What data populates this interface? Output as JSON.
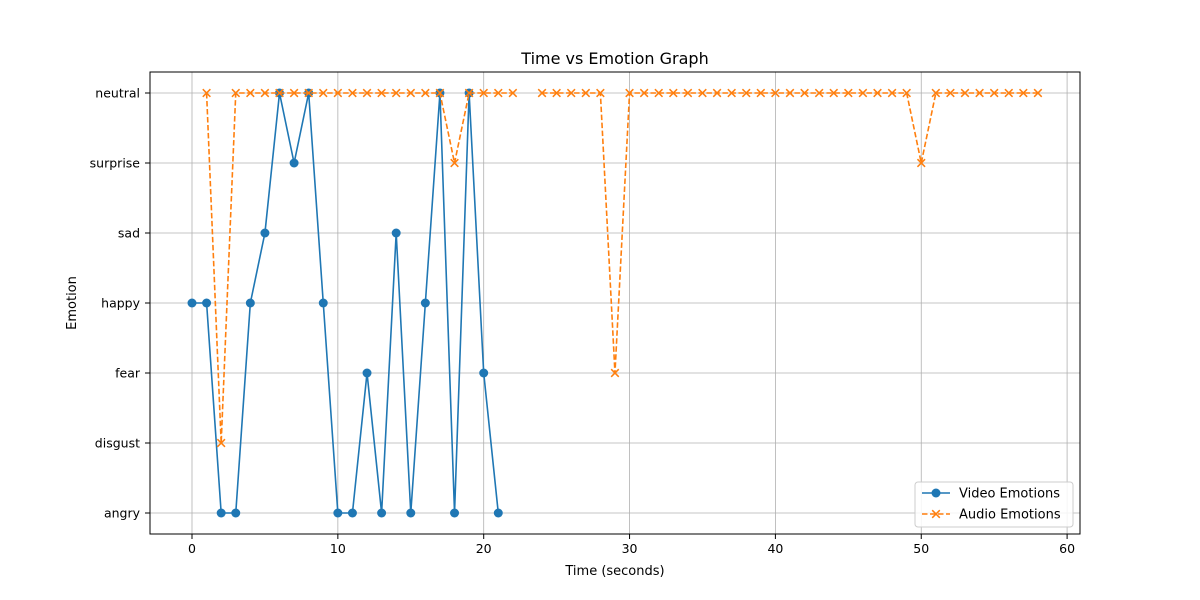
{
  "chart_data": {
    "type": "line",
    "title": "Time vs Emotion Graph",
    "xlabel": "Time (seconds)",
    "ylabel": "Emotion",
    "xlim": [
      -3,
      61
    ],
    "xticks": [
      0,
      10,
      20,
      30,
      40,
      50,
      60
    ],
    "categories_y": [
      "angry",
      "disgust",
      "fear",
      "happy",
      "sad",
      "surprise",
      "neutral"
    ],
    "grid": true,
    "legend_position": "bottom-right",
    "series": [
      {
        "name": "Video Emotions",
        "color": "#1f77b4",
        "line_style": "solid",
        "marker": "circle",
        "x": [
          0,
          1,
          2,
          3,
          4,
          5,
          6,
          7,
          8,
          9,
          10,
          11,
          12,
          13,
          14,
          15,
          16,
          17,
          18,
          19,
          20,
          21
        ],
        "y": [
          "happy",
          "happy",
          "angry",
          "angry",
          "happy",
          "sad",
          "neutral",
          "surprise",
          "neutral",
          "happy",
          "angry",
          "angry",
          "fear",
          "angry",
          "sad",
          "angry",
          "happy",
          "neutral",
          "angry",
          "neutral",
          "fear",
          "angry"
        ]
      },
      {
        "name": "Audio Emotions",
        "color": "#ff7f0e",
        "line_style": "dashed",
        "marker": "x",
        "x": [
          1,
          2,
          3,
          4,
          5,
          6,
          7,
          8,
          9,
          10,
          11,
          12,
          13,
          14,
          15,
          16,
          17,
          18,
          19,
          20,
          21,
          22,
          null,
          24,
          25,
          26,
          27,
          28,
          29,
          30,
          31,
          32,
          33,
          34,
          35,
          36,
          37,
          38,
          39,
          40,
          41,
          42,
          43,
          44,
          45,
          46,
          47,
          48,
          49,
          50,
          51,
          52,
          53,
          54,
          55,
          56,
          57,
          58
        ],
        "y": [
          "neutral",
          "disgust",
          "neutral",
          "neutral",
          "neutral",
          "neutral",
          "neutral",
          "neutral",
          "neutral",
          "neutral",
          "neutral",
          "neutral",
          "neutral",
          "neutral",
          "neutral",
          "neutral",
          "neutral",
          "surprise",
          "neutral",
          "neutral",
          "neutral",
          "neutral",
          null,
          "neutral",
          "neutral",
          "neutral",
          "neutral",
          "neutral",
          "fear",
          "neutral",
          "neutral",
          "neutral",
          "neutral",
          "neutral",
          "neutral",
          "neutral",
          "neutral",
          "neutral",
          "neutral",
          "neutral",
          "neutral",
          "neutral",
          "neutral",
          "neutral",
          "neutral",
          "neutral",
          "neutral",
          "neutral",
          "neutral",
          "surprise",
          "neutral",
          "neutral",
          "neutral",
          "neutral",
          "neutral",
          "neutral",
          "neutral",
          "neutral"
        ]
      }
    ]
  }
}
